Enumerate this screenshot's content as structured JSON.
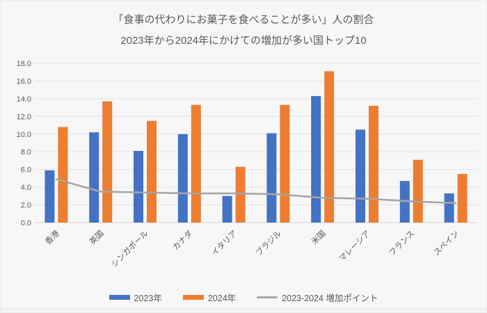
{
  "title": {
    "line1": "「食事の代わりにお菓子を食べることが多い」人の割合",
    "line2": "2023年から2024年にかけての増加が多い国トップ10"
  },
  "colors": {
    "bar_2023": "#4472C4",
    "bar_2024": "#ED7D31",
    "increase_line": "#A5A5A5",
    "text": "#595959",
    "gridline": "#e2e2e2",
    "axis_line": "#d6d6d6",
    "background": "#f7f7f7"
  },
  "chart_data": {
    "type": "bar",
    "subtype": "grouped bars with overlay line",
    "categories": [
      "香港",
      "英国",
      "シンガポール",
      "カナダ",
      "イタリア",
      "ブラジル",
      "米国",
      "マレーシア",
      "フランス",
      "スペイン"
    ],
    "series": [
      {
        "name": "2023年",
        "type": "bar",
        "color": "#4472C4",
        "values": [
          5.9,
          10.2,
          8.1,
          10.0,
          3.0,
          10.1,
          14.3,
          10.5,
          4.7,
          3.3
        ]
      },
      {
        "name": "2024年",
        "type": "bar",
        "color": "#ED7D31",
        "values": [
          10.8,
          13.7,
          11.5,
          13.3,
          6.3,
          13.3,
          17.1,
          13.2,
          7.1,
          5.5
        ]
      },
      {
        "name": "2023-2024 増加ポイント",
        "type": "line",
        "color": "#A5A5A5",
        "values": [
          4.9,
          3.5,
          3.4,
          3.3,
          3.3,
          3.2,
          2.8,
          2.7,
          2.4,
          2.2
        ]
      }
    ],
    "title": "「食事の代わりにお菓子を食べることが多い」人の割合 2023年から2024年にかけての増加が多い国トップ10",
    "xlabel": "",
    "ylabel": "",
    "ylim": [
      0,
      18
    ],
    "ytick_step": 2,
    "yticks": [
      "0.0",
      "2.0",
      "4.0",
      "6.0",
      "8.0",
      "10.0",
      "12.0",
      "14.0",
      "16.0",
      "18.0"
    ],
    "grid": true,
    "legend_position": "bottom",
    "x_label_rotation_deg": -45
  }
}
